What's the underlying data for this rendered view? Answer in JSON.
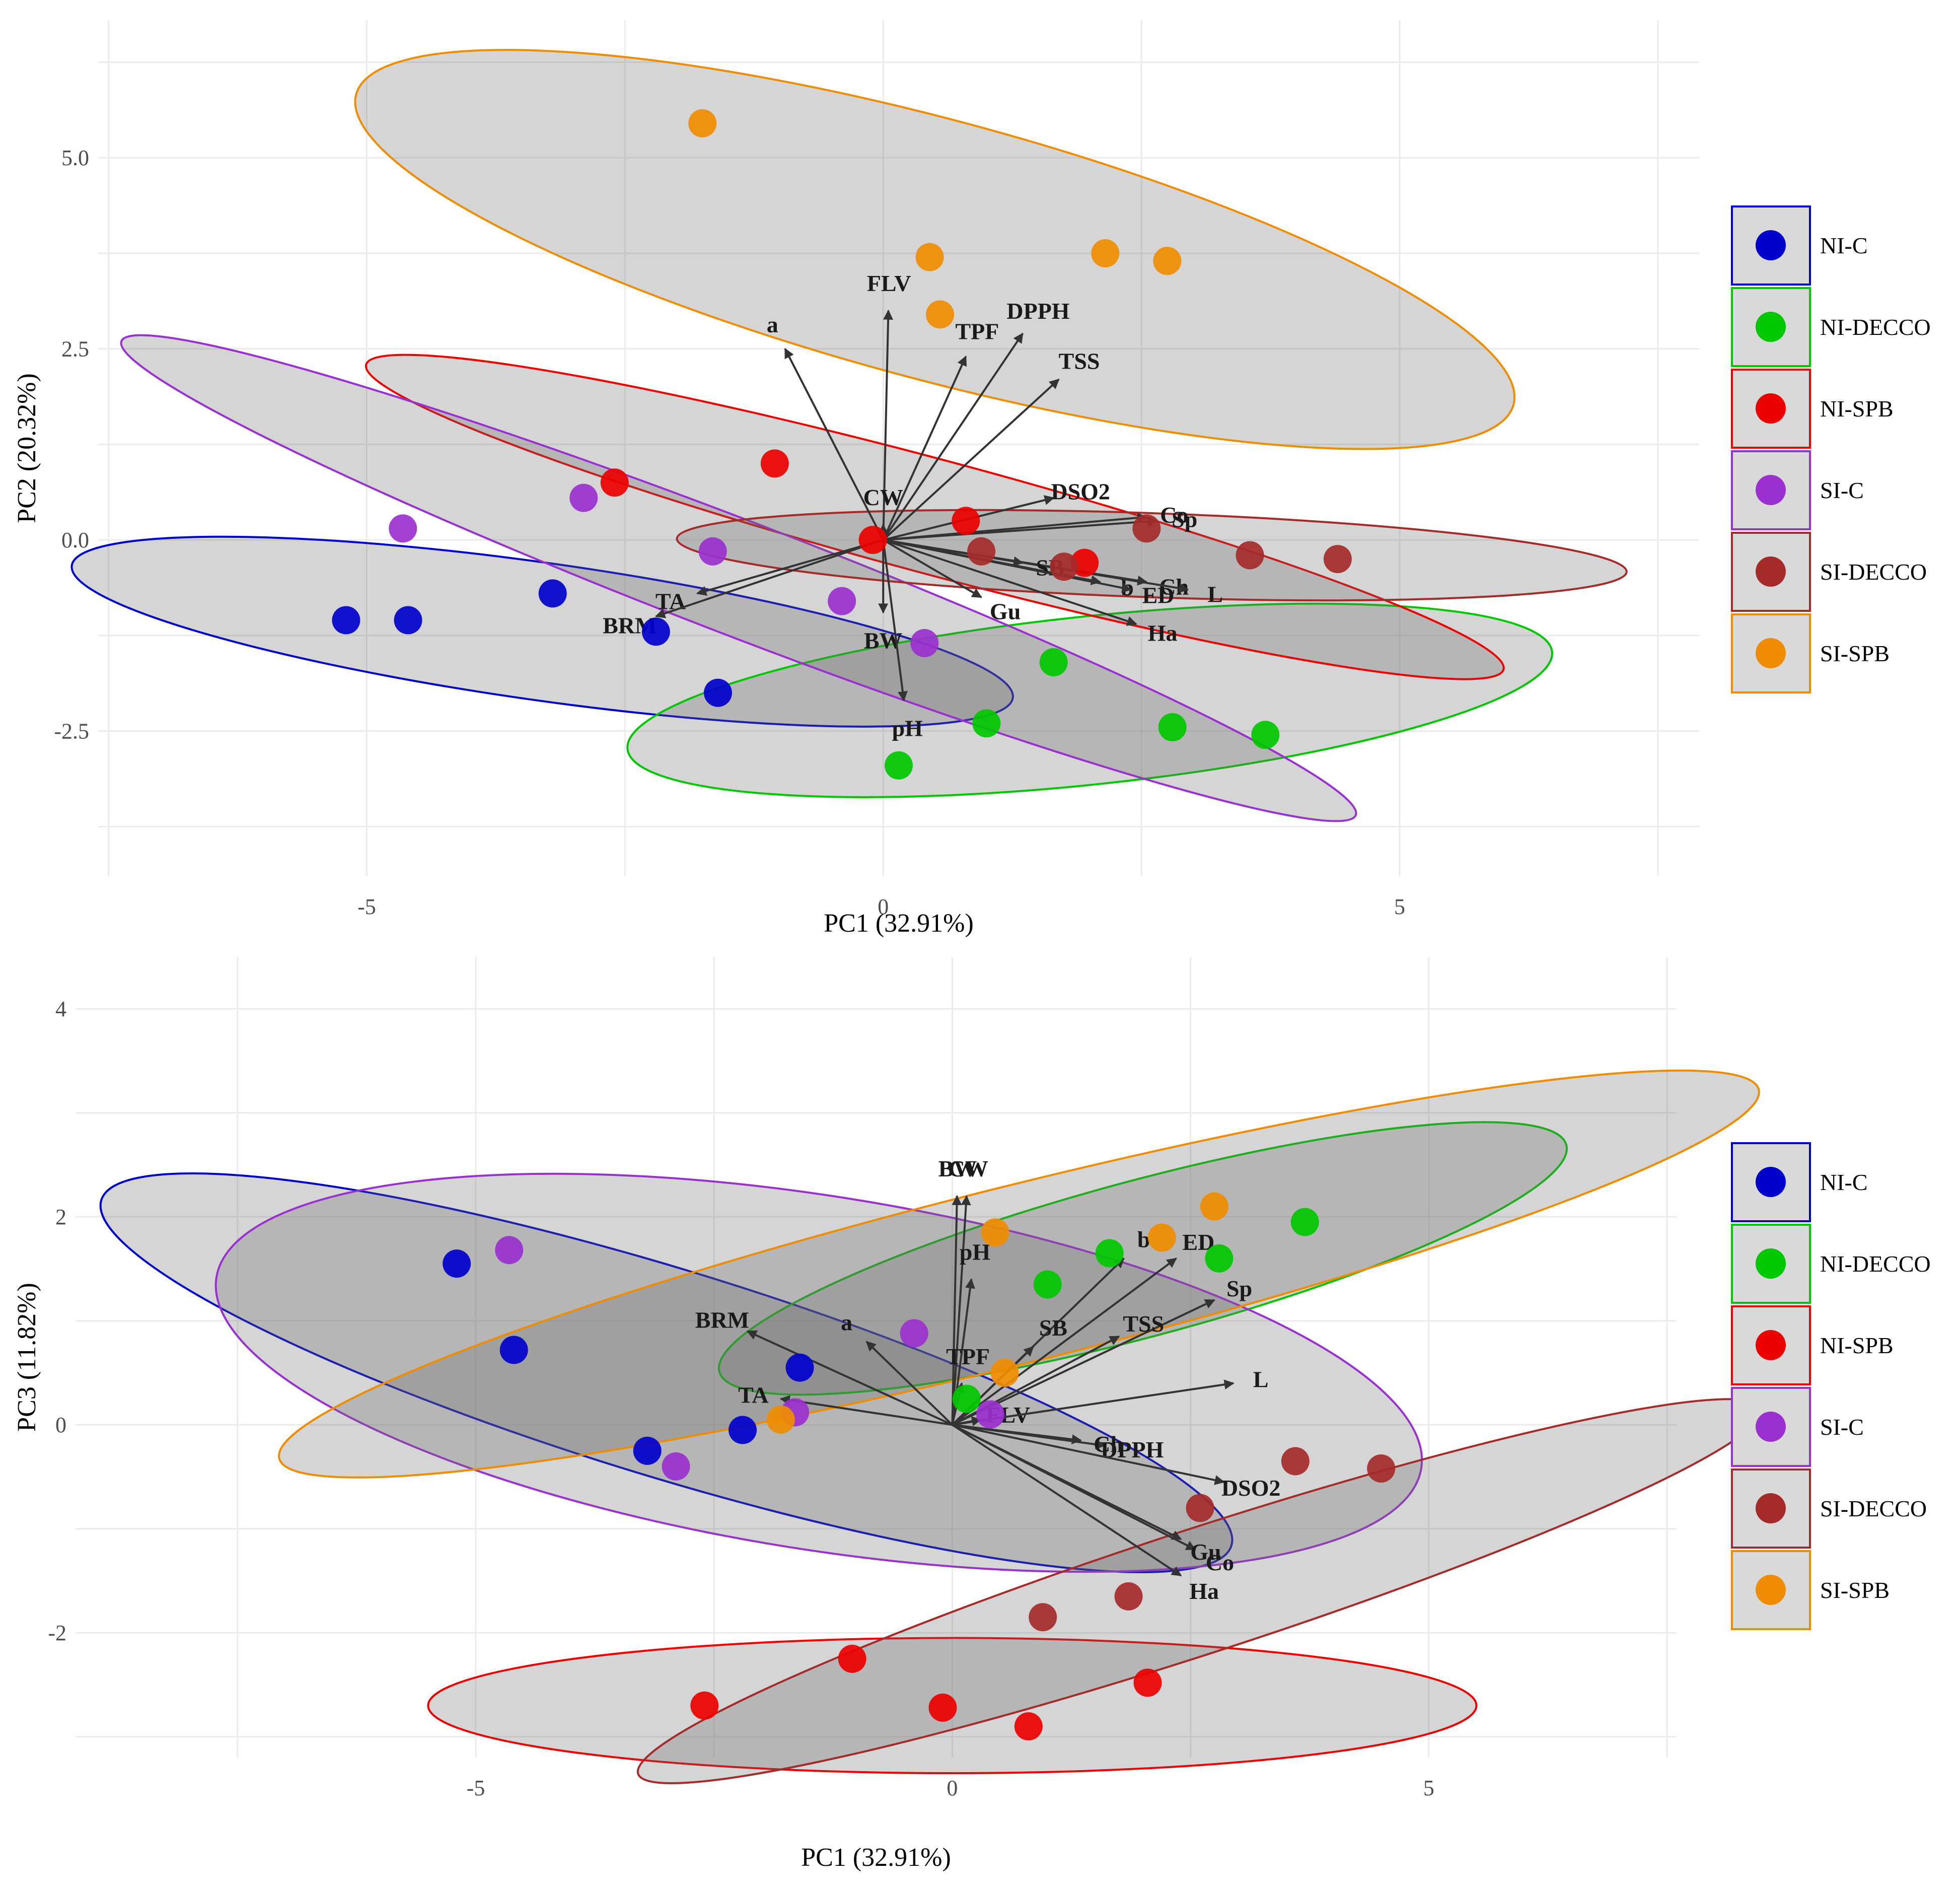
{
  "chart_data": [
    {
      "type": "scatter",
      "title": "",
      "xlabel": "PC1 (32.91%)",
      "ylabel": "PC2 (20.32%)",
      "xlim": [
        -7.6,
        7.9
      ],
      "ylim": [
        -4.4,
        6.8
      ],
      "xticks": [
        -5,
        0,
        5
      ],
      "yticks": [
        -2.5,
        0.0,
        2.5,
        5.0
      ],
      "ytick_labels": [
        "-2.5",
        "0.0",
        "2.5",
        "5.0"
      ],
      "grid": true,
      "legend_position": "right",
      "series": [
        {
          "name": "NI-C",
          "color": "#0000cd",
          "points": [
            [
              -5.2,
              -1.05
            ],
            [
              -4.6,
              -1.05
            ],
            [
              -3.2,
              -0.7
            ],
            [
              -2.2,
              -1.2
            ],
            [
              -1.6,
              -2.0
            ]
          ]
        },
        {
          "name": "NI-DECCO",
          "color": "#00c800",
          "points": [
            [
              1.65,
              -1.6
            ],
            [
              1.0,
              -2.4
            ],
            [
              0.15,
              -2.95
            ],
            [
              2.8,
              -2.45
            ],
            [
              3.7,
              -2.55
            ]
          ]
        },
        {
          "name": "NI-SPB",
          "color": "#ee0000",
          "points": [
            [
              -2.6,
              0.75
            ],
            [
              -1.05,
              1.0
            ],
            [
              -0.1,
              0.0
            ],
            [
              0.8,
              0.25
            ],
            [
              1.95,
              -0.3
            ]
          ]
        },
        {
          "name": "SI-C",
          "color": "#9b30d0",
          "points": [
            [
              -4.65,
              0.15
            ],
            [
              -2.9,
              0.55
            ],
            [
              -1.65,
              -0.15
            ],
            [
              -0.4,
              -0.8
            ],
            [
              0.4,
              -1.35
            ]
          ]
        },
        {
          "name": "SI-DECCO",
          "color": "#a52a2a",
          "points": [
            [
              0.95,
              -0.15
            ],
            [
              1.75,
              -0.35
            ],
            [
              2.55,
              0.15
            ],
            [
              3.55,
              -0.2
            ],
            [
              4.4,
              -0.25
            ]
          ]
        },
        {
          "name": "SI-SPB",
          "color": "#f08c00",
          "points": [
            [
              -1.75,
              5.45
            ],
            [
              0.45,
              3.7
            ],
            [
              2.15,
              3.75
            ],
            [
              2.75,
              3.65
            ],
            [
              0.55,
              2.95
            ]
          ]
        }
      ],
      "ellipses": [
        {
          "group": "NI-C",
          "cx": -3.3,
          "cy": -1.2,
          "rx": 4.6,
          "ry": 0.9,
          "angle_deg": -8
        },
        {
          "group": "NI-DECCO",
          "cx": 2.0,
          "cy": -2.1,
          "rx": 4.5,
          "ry": 1.1,
          "angle_deg": 6
        },
        {
          "group": "NI-SPB",
          "cx": 0.5,
          "cy": 0.3,
          "rx": 5.7,
          "ry": 0.75,
          "angle_deg": -15
        },
        {
          "group": "SI-C",
          "cx": -1.4,
          "cy": -0.5,
          "rx": 6.4,
          "ry": 0.75,
          "angle_deg": -21
        },
        {
          "group": "SI-DECCO",
          "cx": 2.6,
          "cy": -0.2,
          "rx": 4.6,
          "ry": 0.55,
          "angle_deg": -2
        },
        {
          "group": "SI-SPB",
          "cx": 0.5,
          "cy": 3.8,
          "rx": 5.8,
          "ry": 1.7,
          "angle_deg": -15
        }
      ],
      "loadings": [
        {
          "label": "FLV",
          "x": 0.05,
          "y": 3.0
        },
        {
          "label": "DPPH",
          "x": 1.35,
          "y": 2.7
        },
        {
          "label": "a",
          "x": -0.95,
          "y": 2.5
        },
        {
          "label": "TPF",
          "x": 0.8,
          "y": 2.4
        },
        {
          "label": "TSS",
          "x": 1.7,
          "y": 2.1
        },
        {
          "label": "DSO2",
          "x": 1.65,
          "y": 0.55
        },
        {
          "label": "CW",
          "x": 0.0,
          "y": 0.2
        },
        {
          "label": "Co",
          "x": 2.55,
          "y": 0.3
        },
        {
          "label": "Sp",
          "x": 2.65,
          "y": 0.25
        },
        {
          "label": "b",
          "x": 2.1,
          "y": -0.55
        },
        {
          "label": "Ch",
          "x": 2.55,
          "y": -0.55
        },
        {
          "label": "L",
          "x": 2.95,
          "y": -0.65
        },
        {
          "label": "SB",
          "x": 1.35,
          "y": -0.3
        },
        {
          "label": "ED",
          "x": 2.4,
          "y": -0.65
        },
        {
          "label": "Ha",
          "x": 2.45,
          "y": -1.1
        },
        {
          "label": "BW",
          "x": 0.0,
          "y": -0.95
        },
        {
          "label": "pH",
          "x": 0.2,
          "y": -2.1
        },
        {
          "label": "TA",
          "x": -1.8,
          "y": -0.7
        },
        {
          "label": "BRM",
          "x": -2.2,
          "y": -1.0
        },
        {
          "label": "Gu",
          "x": 0.95,
          "y": -0.75
        }
      ]
    },
    {
      "type": "scatter",
      "title": "",
      "xlabel": "PC1 (32.91%)",
      "ylabel": "PC3 (11.82%)",
      "xlim": [
        -9.2,
        7.6
      ],
      "ylim": [
        -3.2,
        4.5
      ],
      "xticks": [
        -5,
        0,
        5
      ],
      "yticks": [
        -2,
        0,
        2,
        4
      ],
      "ytick_labels": [
        "-2",
        "0",
        "2",
        "4"
      ],
      "grid": true,
      "legend_position": "right",
      "series": [
        {
          "name": "NI-C",
          "color": "#0000cd",
          "points": [
            [
              -5.2,
              1.55
            ],
            [
              -4.6,
              0.72
            ],
            [
              -3.2,
              -0.25
            ],
            [
              -2.2,
              -0.05
            ],
            [
              -1.6,
              0.55
            ]
          ]
        },
        {
          "name": "NI-DECCO",
          "color": "#00c800",
          "points": [
            [
              0.15,
              0.25
            ],
            [
              1.0,
              1.35
            ],
            [
              1.65,
              1.65
            ],
            [
              2.8,
              1.6
            ],
            [
              3.7,
              1.95
            ]
          ]
        },
        {
          "name": "NI-SPB",
          "color": "#ee0000",
          "points": [
            [
              -2.6,
              -2.7
            ],
            [
              -1.05,
              -2.25
            ],
            [
              -0.1,
              -2.72
            ],
            [
              0.8,
              -2.9
            ],
            [
              2.05,
              -2.48
            ]
          ]
        },
        {
          "name": "SI-C",
          "color": "#9b30d0",
          "points": [
            [
              -4.65,
              1.68
            ],
            [
              -2.9,
              -0.4
            ],
            [
              -1.65,
              0.12
            ],
            [
              -0.4,
              0.88
            ],
            [
              0.4,
              0.1
            ]
          ]
        },
        {
          "name": "SI-DECCO",
          "color": "#a52a2a",
          "points": [
            [
              0.95,
              -1.85
            ],
            [
              1.85,
              -1.65
            ],
            [
              2.6,
              -0.8
            ],
            [
              3.6,
              -0.35
            ],
            [
              4.5,
              -0.42
            ]
          ]
        },
        {
          "name": "SI-SPB",
          "color": "#f08c00",
          "points": [
            [
              -1.8,
              0.05
            ],
            [
              0.45,
              1.85
            ],
            [
              0.55,
              0.5
            ],
            [
              2.2,
              1.8
            ],
            [
              2.75,
              2.1
            ]
          ]
        }
      ],
      "ellipses": [
        {
          "group": "NI-C",
          "cx": -3.0,
          "cy": 0.5,
          "rx": 6.2,
          "ry": 1.0,
          "angle_deg": -17
        },
        {
          "group": "NI-DECCO",
          "cx": 2.0,
          "cy": 1.6,
          "rx": 4.6,
          "ry": 0.75,
          "angle_deg": 15
        },
        {
          "group": "NI-SPB",
          "cx": 0.0,
          "cy": -2.7,
          "rx": 5.5,
          "ry": 0.65,
          "angle_deg": 0
        },
        {
          "group": "SI-C",
          "cx": -1.4,
          "cy": 0.5,
          "rx": 6.4,
          "ry": 1.7,
          "angle_deg": -9
        },
        {
          "group": "SI-DECCO",
          "cx": 2.6,
          "cy": -1.6,
          "rx": 6.2,
          "ry": 0.6,
          "angle_deg": 18
        },
        {
          "group": "SI-SPB",
          "cx": 0.7,
          "cy": 1.45,
          "rx": 8.0,
          "ry": 0.85,
          "angle_deg": 14
        }
      ],
      "loadings": [
        {
          "label": "BW",
          "x": 0.05,
          "y": 2.2
        },
        {
          "label": "CW",
          "x": 0.15,
          "y": 2.2
        },
        {
          "label": "pH",
          "x": 0.2,
          "y": 1.4
        },
        {
          "label": "BRM",
          "x": -2.15,
          "y": 0.9
        },
        {
          "label": "a",
          "x": -0.9,
          "y": 0.8
        },
        {
          "label": "TPF",
          "x": 0.1,
          "y": 0.4
        },
        {
          "label": "TA",
          "x": -1.8,
          "y": 0.25
        },
        {
          "label": "FLV",
          "x": 0.3,
          "y": 0.05
        },
        {
          "label": "b",
          "x": 1.8,
          "y": 1.6
        },
        {
          "label": "ED",
          "x": 2.35,
          "y": 1.6
        },
        {
          "label": "Sp",
          "x": 2.75,
          "y": 1.2
        },
        {
          "label": "SB",
          "x": 0.85,
          "y": 0.75
        },
        {
          "label": "TSS",
          "x": 1.75,
          "y": 0.85
        },
        {
          "label": "L",
          "x": 2.95,
          "y": 0.4
        },
        {
          "label": "DPPH",
          "x": 1.6,
          "y": -0.2
        },
        {
          "label": "DSO2",
          "x": 2.85,
          "y": -0.55
        },
        {
          "label": "Ch",
          "x": 1.35,
          "y": -0.15
        },
        {
          "label": "Co",
          "x": 2.55,
          "y": -1.2
        },
        {
          "label": "Gu",
          "x": 2.4,
          "y": -1.1
        },
        {
          "label": "Ha",
          "x": 2.4,
          "y": -1.45
        }
      ]
    }
  ]
}
